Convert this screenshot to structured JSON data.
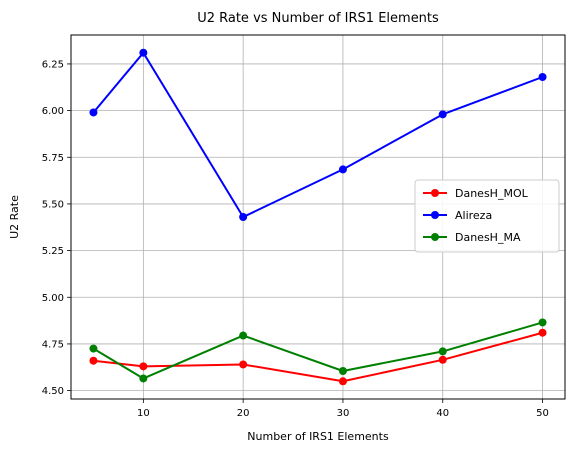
{
  "chart_data": {
    "type": "line",
    "title": "U2 Rate vs Number of IRS1 Elements",
    "xlabel": "Number of IRS1 Elements",
    "ylabel": "U2 Rate",
    "x": [
      5,
      10,
      20,
      30,
      40,
      50
    ],
    "xlim": [
      2.75,
      52.25
    ],
    "ylim": [
      4.455,
      6.405
    ],
    "xticks": [
      10,
      20,
      30,
      40,
      50
    ],
    "yticks": [
      4.5,
      4.75,
      5.0,
      5.25,
      5.5,
      5.75,
      6.0,
      6.25
    ],
    "ytick_labels": [
      "4.50",
      "4.75",
      "5.00",
      "5.25",
      "5.50",
      "5.75",
      "6.00",
      "6.25"
    ],
    "grid": true,
    "legend_position": "center-right",
    "series": [
      {
        "name": "DanesH_MOL",
        "color": "#ff0000",
        "values": [
          4.66,
          4.63,
          4.64,
          4.55,
          4.665,
          4.81
        ]
      },
      {
        "name": "Alireza",
        "color": "#0000ff",
        "values": [
          5.99,
          6.31,
          5.43,
          5.685,
          5.98,
          6.18
        ]
      },
      {
        "name": "DanesH_MA",
        "color": "#008000",
        "values": [
          4.725,
          4.565,
          4.795,
          4.605,
          4.71,
          4.865
        ]
      }
    ]
  }
}
